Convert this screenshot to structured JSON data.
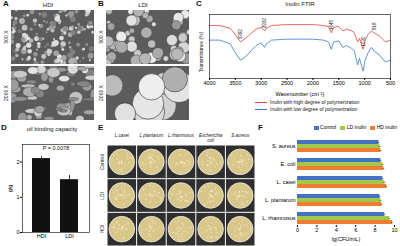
{
  "panels": {
    "A": {
      "panel": "A",
      "title": "HDI",
      "rows": [
        "500 X",
        "2000 X"
      ]
    },
    "B": {
      "panel": "B",
      "title": "LDI",
      "rows": [
        "500 X",
        "2000 X"
      ]
    },
    "E": {
      "panel": "E",
      "columns": [
        "L.casei",
        "L.plantarum",
        "L.rhamnosus",
        "Escherichia coli",
        "S.aureus"
      ],
      "rows": [
        "Control",
        "LDI",
        "HDI"
      ]
    }
  },
  "chart_data": [
    {
      "panel": "C",
      "type": "line",
      "title": "Inulin FTIR",
      "x_label": "Wavenumber (cm⁻¹)",
      "y_label": "Transmittance (%)",
      "x": [
        4000,
        3800,
        3600,
        3500,
        3400,
        3300,
        3100,
        3000,
        2935,
        2900,
        2800,
        2500,
        2200,
        2000,
        1800,
        1700,
        1645,
        1600,
        1500,
        1420,
        1350,
        1250,
        1200,
        1135,
        1100,
        1030,
        990,
        935,
        870,
        818,
        700,
        600,
        500
      ],
      "series": [
        {
          "name": "Inulin with high degree of polymerization",
          "color": "#e0463c",
          "values": [
            88,
            88,
            85,
            78,
            70,
            74,
            84,
            86,
            82,
            85,
            88,
            89,
            89,
            89,
            88,
            87,
            80,
            86,
            87,
            82,
            84,
            82,
            80,
            70,
            74,
            62,
            72,
            78,
            82,
            80,
            76,
            70,
            72
          ]
        },
        {
          "name": "Inulin with low degree of polymerization",
          "color": "#3a78c2",
          "values": [
            72,
            72,
            68,
            58,
            50,
            54,
            66,
            69,
            64,
            68,
            72,
            73,
            73,
            73,
            72,
            70,
            62,
            70,
            71,
            64,
            66,
            63,
            60,
            45,
            52,
            38,
            50,
            58,
            64,
            60,
            55,
            48,
            50
          ]
        }
      ],
      "xlim": [
        4000,
        500
      ],
      "xticks": [
        4000,
        3500,
        3000,
        2500,
        2000,
        1500,
        1000,
        500
      ],
      "ylim": [
        30,
        100
      ],
      "tick_labels": "x",
      "annotations": [
        {
          "x": 3392,
          "y": 73,
          "text": "3392"
        },
        {
          "x": 2932,
          "y": 85,
          "text": "2932"
        },
        {
          "x": 1645,
          "y": 83,
          "text": "1645"
        },
        {
          "x": 1030,
          "y": 65,
          "text": "1030"
        },
        {
          "x": 818,
          "y": 83,
          "text": "818"
        }
      ]
    },
    {
      "panel": "D",
      "type": "bar",
      "title": "oil binding capacity",
      "categories": [
        "HDI",
        "LDI"
      ],
      "values": [
        2.1,
        1.5
      ],
      "errors": [
        0.06,
        0.12
      ],
      "color": "#111111",
      "y_label": "g/g",
      "ylim": [
        0,
        2.5
      ],
      "yticks": [
        0,
        1,
        2
      ],
      "annotation": "P = 0.0078"
    },
    {
      "panel": "F",
      "type": "bar",
      "orientation": "horizontal",
      "x_label": "lg(CFU/mL)",
      "categories": [
        "S. aureus",
        "E. coli",
        "L. casei",
        "L. plantarum",
        "L. rhamnosus"
      ],
      "series": [
        {
          "name": "Control",
          "color": "#4472c4",
          "values": [
            8.4,
            8.6,
            8.8,
            8.5,
            9.0
          ],
          "errors": [
            0.1,
            0.1,
            0.1,
            0.1,
            0.1
          ]
        },
        {
          "name": "LD inulin",
          "color": "#a5c84a",
          "values": [
            8.5,
            8.8,
            9.0,
            8.6,
            9.5
          ],
          "errors": [
            0.1,
            0.1,
            0.1,
            0.1,
            0.1
          ]
        },
        {
          "name": "HD inulin",
          "color": "#ed7d31",
          "values": [
            8.6,
            8.9,
            9.2,
            8.7,
            9.8
          ],
          "errors": [
            0.1,
            0.1,
            0.1,
            0.1,
            0.1
          ]
        }
      ],
      "xlim": [
        0,
        10
      ],
      "xticks": [
        0,
        2,
        4,
        6,
        8,
        10
      ],
      "legend": "top-right"
    }
  ]
}
